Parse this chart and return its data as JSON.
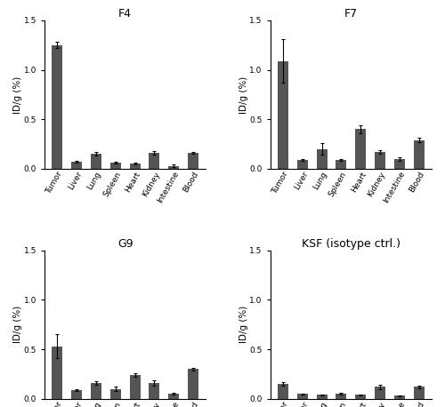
{
  "subplots": [
    {
      "title": "F4",
      "categories": [
        "Tumor",
        "Liver",
        "Lung",
        "Spleen",
        "Heart",
        "Kidney",
        "Intestine",
        "Blood"
      ],
      "values": [
        1.25,
        0.07,
        0.15,
        0.06,
        0.05,
        0.16,
        0.03,
        0.16
      ],
      "errors": [
        0.03,
        0.01,
        0.02,
        0.01,
        0.01,
        0.02,
        0.01,
        0.01
      ]
    },
    {
      "title": "F7",
      "categories": [
        "Tumor",
        "Liver",
        "Lung",
        "Spleen",
        "Heart",
        "Kidney",
        "Intestine",
        "Blood"
      ],
      "values": [
        1.09,
        0.09,
        0.2,
        0.09,
        0.4,
        0.17,
        0.1,
        0.29
      ],
      "errors": [
        0.22,
        0.01,
        0.06,
        0.01,
        0.04,
        0.02,
        0.02,
        0.02
      ]
    },
    {
      "title": "G9",
      "categories": [
        "Tumor",
        "Liver",
        "Lung",
        "Spleen",
        "Heart",
        "Kidney",
        "Intestine",
        "Blood"
      ],
      "values": [
        0.53,
        0.09,
        0.16,
        0.1,
        0.24,
        0.16,
        0.05,
        0.3
      ],
      "errors": [
        0.12,
        0.01,
        0.02,
        0.02,
        0.02,
        0.03,
        0.01,
        0.01
      ]
    },
    {
      "title": "KSF (isotype ctrl.)",
      "categories": [
        "Tumor",
        "Liver",
        "Lung",
        "Spleen",
        "Heart",
        "Kidney",
        "Intestine",
        "Blood"
      ],
      "values": [
        0.15,
        0.05,
        0.04,
        0.05,
        0.04,
        0.12,
        0.03,
        0.12
      ],
      "errors": [
        0.02,
        0.005,
        0.005,
        0.01,
        0.005,
        0.02,
        0.005,
        0.01
      ]
    }
  ],
  "bar_color": "#555555",
  "ylim": [
    0,
    1.5
  ],
  "yticks": [
    0.0,
    0.5,
    1.0,
    1.5
  ],
  "ylabel": "ID/g (%)",
  "background_color": "#ffffff",
  "bar_width": 0.55,
  "title_fontsize": 9,
  "tick_fontsize": 6.5,
  "label_fontsize": 7.5
}
